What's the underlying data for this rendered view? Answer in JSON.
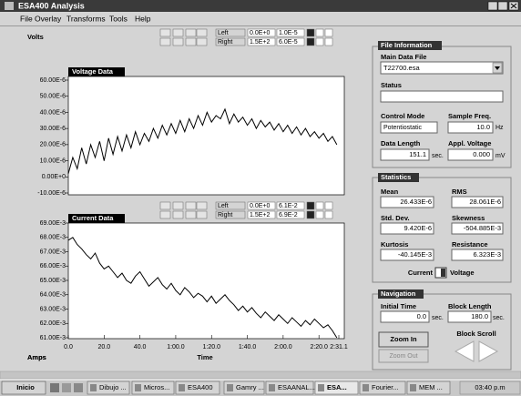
{
  "window": {
    "title": "ESA400 Analysis"
  },
  "menu": [
    "File",
    "Overlay",
    "Transforms",
    "Tools",
    "Help"
  ],
  "voltage_plot": {
    "type": "line",
    "title": "Voltage Data",
    "y_label": "Volts",
    "range_controls": {
      "left_label": "Left",
      "left": [
        "0.0E+0",
        "1.0E-5"
      ],
      "right_label": "Right",
      "right": [
        "1.5E+2",
        "6.0E-5"
      ]
    },
    "x": [
      0,
      2.5,
      5,
      7.5,
      10,
      12.5,
      15,
      17.5,
      20,
      22.5,
      25,
      27.5,
      30,
      32.5,
      35,
      37.5,
      40,
      42.5,
      45,
      47.5,
      50,
      52.5,
      55,
      57.5,
      60,
      62.5,
      65,
      67.5,
      70,
      72.5,
      75,
      77.5,
      80,
      82.5,
      85,
      87.5,
      90,
      92.5,
      95,
      97.5,
      100,
      102.5,
      105,
      107.5,
      110,
      112.5,
      115,
      117.5,
      120,
      122.5,
      125,
      127.5,
      130,
      132.5,
      135,
      137.5,
      140,
      142.5,
      145,
      147.5,
      150
    ],
    "values": [
      2e-06,
      1.2e-05,
      5e-06,
      1.8e-05,
      8e-06,
      2e-05,
      1.2e-05,
      2.2e-05,
      1e-05,
      2.4e-05,
      1.4e-05,
      2.5e-05,
      1.6e-05,
      2.6e-05,
      1.8e-05,
      2.8e-05,
      2e-05,
      2.7e-05,
      2.2e-05,
      3e-05,
      2.4e-05,
      3.2e-05,
      2.6e-05,
      3.3e-05,
      2.7e-05,
      3.5e-05,
      2.8e-05,
      3.6e-05,
      3e-05,
      3.8e-05,
      3.2e-05,
      4e-05,
      3.4e-05,
      3.8e-05,
      3.6e-05,
      4.2e-05,
      3.3e-05,
      3.9e-05,
      3.4e-05,
      3.7e-05,
      3.2e-05,
      3.6e-05,
      3e-05,
      3.5e-05,
      3.1e-05,
      3.4e-05,
      2.9e-05,
      3.3e-05,
      2.8e-05,
      3.2e-05,
      2.7e-05,
      3.1e-05,
      2.6e-05,
      3e-05,
      2.5e-05,
      2.8e-05,
      2.4e-05,
      2.7e-05,
      2.2e-05,
      2.5e-05,
      2e-05
    ],
    "color": "#000000",
    "xlim": [
      0,
      151.1
    ],
    "ylim": [
      -1e-05,
      6e-05
    ],
    "yticks": [
      {
        "value": 6e-05,
        "label": "60.00E-6"
      },
      {
        "value": 5e-05,
        "label": "50.00E-6"
      },
      {
        "value": 4e-05,
        "label": "40.00E-6"
      },
      {
        "value": 3e-05,
        "label": "30.00E-6"
      },
      {
        "value": 2e-05,
        "label": "20.00E-6"
      },
      {
        "value": 1e-05,
        "label": "10.00E-6"
      },
      {
        "value": 0,
        "label": "0.00E+0"
      },
      {
        "value": -1e-05,
        "label": "-10.00E-6"
      }
    ]
  },
  "current_plot": {
    "type": "line",
    "title": "Current Data",
    "y_label": "Amps",
    "x_label": "Time",
    "range_controls": {
      "left_label": "Left",
      "left": [
        "0.0E+0",
        "6.1E-2"
      ],
      "right_label": "Right",
      "right": [
        "1.5E+2",
        "6.9E-2"
      ]
    },
    "x": [
      0,
      2.5,
      5,
      7.5,
      10,
      12.5,
      15,
      17.5,
      20,
      22.5,
      25,
      27.5,
      30,
      32.5,
      35,
      37.5,
      40,
      42.5,
      45,
      47.5,
      50,
      52.5,
      55,
      57.5,
      60,
      62.5,
      65,
      67.5,
      70,
      72.5,
      75,
      77.5,
      80,
      82.5,
      85,
      87.5,
      90,
      92.5,
      95,
      97.5,
      100,
      102.5,
      105,
      107.5,
      110,
      112.5,
      115,
      117.5,
      120,
      122.5,
      125,
      127.5,
      130,
      132.5,
      135,
      137.5,
      140,
      142.5,
      145,
      147.5,
      150
    ],
    "values": [
      0.0678,
      0.068,
      0.0675,
      0.0672,
      0.0668,
      0.0665,
      0.0669,
      0.0662,
      0.0658,
      0.066,
      0.0656,
      0.0652,
      0.0655,
      0.065,
      0.0648,
      0.0653,
      0.0656,
      0.0651,
      0.0646,
      0.0649,
      0.0652,
      0.0647,
      0.0644,
      0.0648,
      0.0643,
      0.064,
      0.0645,
      0.0642,
      0.0638,
      0.0641,
      0.0639,
      0.0635,
      0.0639,
      0.0634,
      0.0637,
      0.064,
      0.0636,
      0.0633,
      0.0629,
      0.0632,
      0.0628,
      0.0631,
      0.0627,
      0.0624,
      0.0628,
      0.0625,
      0.0622,
      0.0626,
      0.0623,
      0.062,
      0.0624,
      0.0621,
      0.0618,
      0.0622,
      0.0619,
      0.0623,
      0.062,
      0.0617,
      0.0619,
      0.0615,
      0.061
    ],
    "color": "#000000",
    "xlim": [
      0,
      151.1
    ],
    "ylim": [
      0.061,
      0.069
    ],
    "xticks": [
      {
        "value": 0,
        "label": "0.0"
      },
      {
        "value": 20,
        "label": "20.0"
      },
      {
        "value": 40,
        "label": "40.0"
      },
      {
        "value": 60,
        "label": "1:00.0"
      },
      {
        "value": 80,
        "label": "1:20.0"
      },
      {
        "value": 100,
        "label": "1:40.0"
      },
      {
        "value": 120,
        "label": "2:00.0"
      },
      {
        "value": 140,
        "label": "2:20.0"
      },
      {
        "value": 151.1,
        "label": "2:31.1"
      }
    ],
    "yticks": [
      {
        "value": 0.069,
        "label": "69.00E-3"
      },
      {
        "value": 0.068,
        "label": "68.00E-3"
      },
      {
        "value": 0.067,
        "label": "67.00E-3"
      },
      {
        "value": 0.066,
        "label": "66.00E-3"
      },
      {
        "value": 0.065,
        "label": "65.00E-3"
      },
      {
        "value": 0.064,
        "label": "64.00E-3"
      },
      {
        "value": 0.063,
        "label": "63.00E-3"
      },
      {
        "value": 0.062,
        "label": "62.00E-3"
      },
      {
        "value": 0.061,
        "label": "61.00E-3"
      }
    ]
  },
  "file_information": {
    "header": "File Information",
    "main_data_file_label": "Main Data File",
    "main_data_file": "T22700.esa",
    "status_label": "Status",
    "control_mode_label": "Control Mode",
    "control_mode": "Potentiostatic",
    "sample_freq_label": "Sample Freq.",
    "sample_freq": "10.0",
    "sample_freq_unit": "Hz",
    "data_length_label": "Data Length",
    "data_length": "151.1",
    "data_length_unit": "sec.",
    "appl_voltage_label": "Appl. Voltage",
    "appl_voltage": "0.000",
    "appl_voltage_unit": "mV"
  },
  "statistics": {
    "header": "Statistics",
    "fields": [
      {
        "label": "Mean",
        "value": "26.433E-6"
      },
      {
        "label": "RMS",
        "value": "28.061E-6"
      },
      {
        "label": "Std. Dev.",
        "value": "9.420E-6"
      },
      {
        "label": "Skewness",
        "value": "-504.885E-3"
      },
      {
        "label": "Kurtosis",
        "value": "-40.145E-3"
      },
      {
        "label": "Resistance",
        "value": "6.323E-3"
      }
    ],
    "toggle_left": "Current",
    "toggle_right": "Voltage"
  },
  "navigation": {
    "header": "Navigation",
    "initial_time_label": "Initial Time",
    "initial_time": "0.0",
    "initial_time_unit": "sec.",
    "block_length_label": "Block Length",
    "block_length": "180.0",
    "block_length_unit": "sec.",
    "zoom_in": "Zoom In",
    "zoom_out": "Zoom Out",
    "block_scroll": "Block Scroll"
  },
  "taskbar": {
    "start": "Inicio",
    "buttons": [
      "Dibujo ...",
      "Micros...",
      "ESA400",
      "Gamry ...",
      "ESAANAL...",
      "ESA...",
      "Fourier...",
      "MEM ..."
    ],
    "clock": "03:40 p.m"
  }
}
